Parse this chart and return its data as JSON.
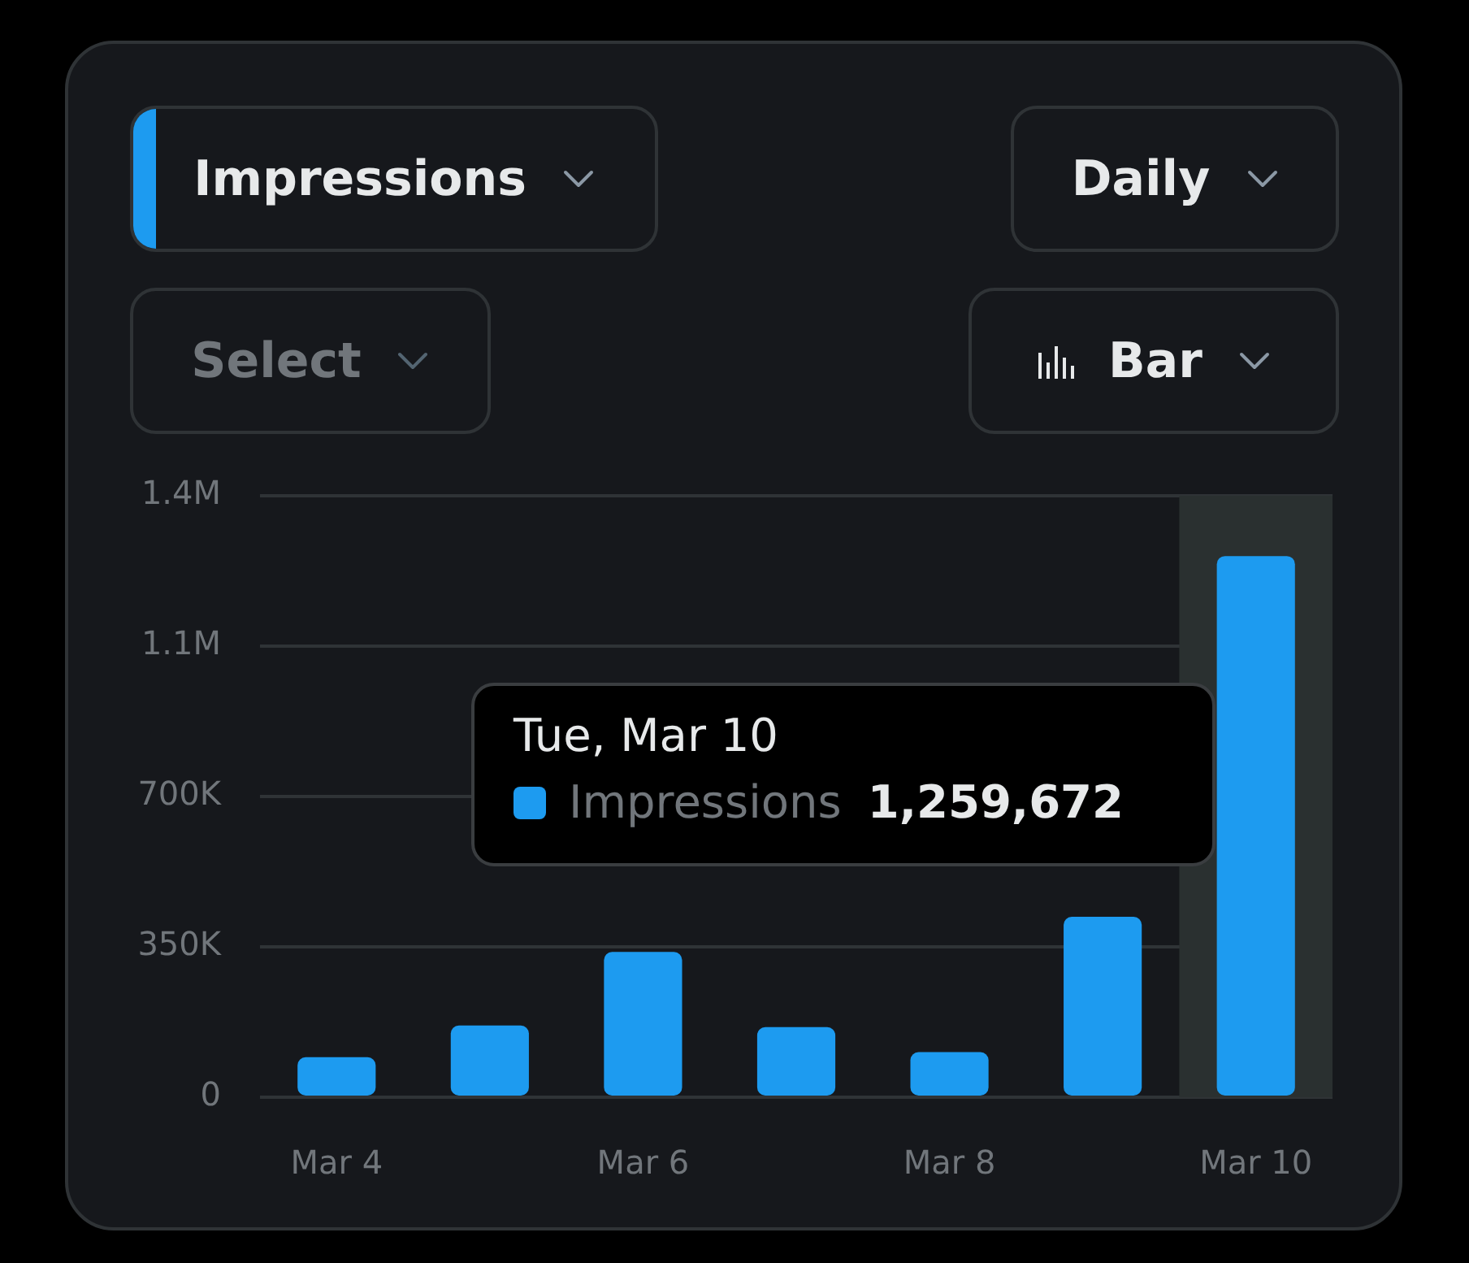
{
  "chart_data": {
    "type": "bar",
    "categories": [
      "Mar 4",
      null,
      "Mar 6",
      null,
      "Mar 8",
      null,
      "Mar 10"
    ],
    "series": [
      {
        "name": "Impressions",
        "color": "#1d9bf0",
        "values": [
          93000,
          167000,
          338000,
          163000,
          105000,
          420000,
          1259672
        ]
      }
    ],
    "ylim": [
      0,
      1400000
    ],
    "yticks": [
      0,
      {
        "value": 350000,
        "label": "350K"
      },
      {
        "value": 700000,
        "label": "700K"
      },
      {
        "value": 1050000,
        "label": "1.1M"
      },
      {
        "value": 1400000,
        "label": "1.4M"
      }
    ],
    "grid": "y",
    "bands": [
      {
        "axis": "x",
        "from": "Mar 10",
        "to": "Mar 10",
        "color": "#2a3030"
      }
    ],
    "annotations": [
      "Impressions",
      "Daily",
      "Select",
      "Bar",
      "Tue, Mar 10",
      "1,259,672"
    ]
  }
}
